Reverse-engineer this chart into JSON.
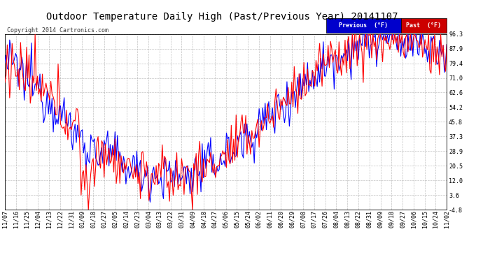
{
  "title": "Outdoor Temperature Daily High (Past/Previous Year) 20141107",
  "copyright": "Copyright 2014 Cartronics.com",
  "legend_labels": [
    "Previous  (°F)",
    "Past  (°F)"
  ],
  "legend_bg_colors": [
    "#0000cc",
    "#cc0000"
  ],
  "line_colors": [
    "#0000ff",
    "#ff0000"
  ],
  "background_color": "#ffffff",
  "plot_bg_color": "#ffffff",
  "grid_color": "#999999",
  "yticks": [
    -4.8,
    3.6,
    12.0,
    20.5,
    28.9,
    37.3,
    45.8,
    54.2,
    62.6,
    71.0,
    79.4,
    87.9,
    96.3
  ],
  "xtick_labels": [
    "11/07",
    "11/16",
    "11/25",
    "12/04",
    "12/13",
    "12/22",
    "12/31",
    "01/09",
    "01/18",
    "01/27",
    "02/05",
    "02/14",
    "02/23",
    "03/04",
    "03/13",
    "03/22",
    "03/31",
    "04/09",
    "04/18",
    "04/27",
    "05/06",
    "05/15",
    "05/24",
    "06/02",
    "06/11",
    "06/20",
    "06/29",
    "07/08",
    "07/17",
    "07/26",
    "08/04",
    "08/13",
    "08/22",
    "08/31",
    "09/09",
    "09/18",
    "09/27",
    "10/06",
    "10/15",
    "10/24",
    "11/02"
  ],
  "ymin": -4.8,
  "ymax": 96.3,
  "line_width": 0.8,
  "title_fontsize": 10,
  "tick_fontsize": 6,
  "copyright_fontsize": 6
}
